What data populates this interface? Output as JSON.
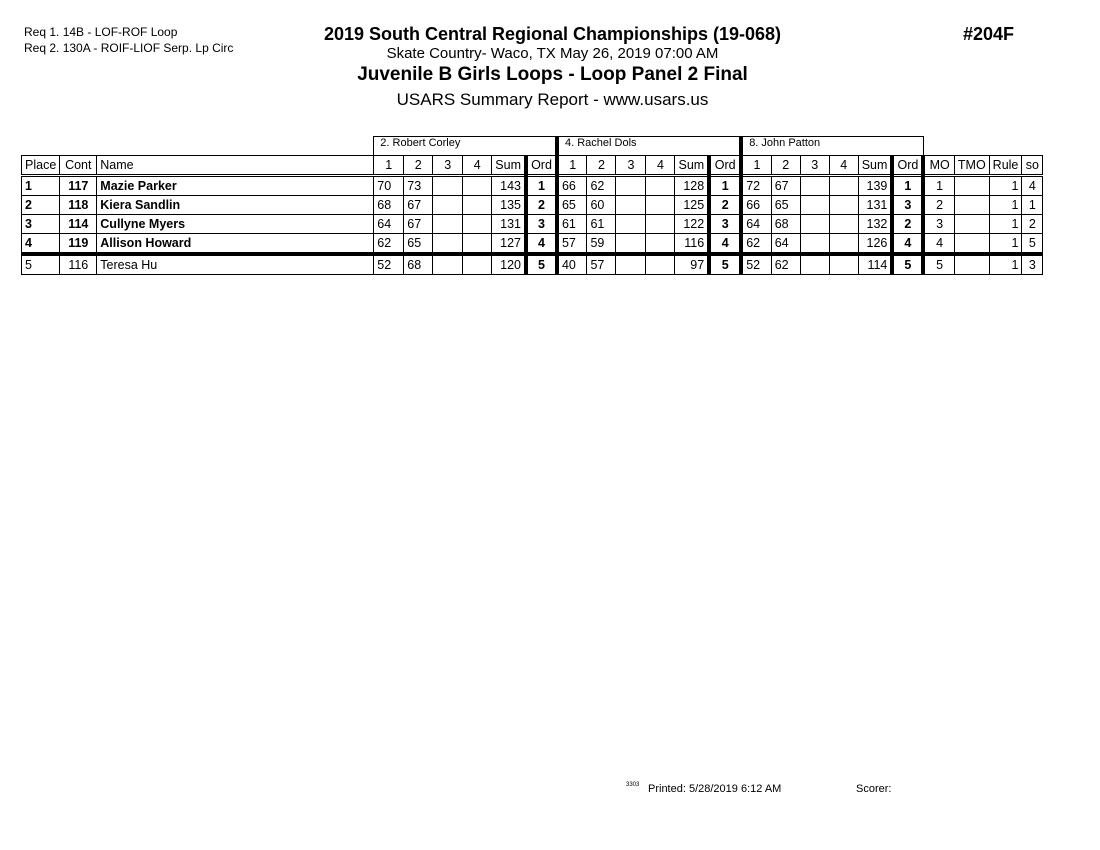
{
  "requirements": [
    "Req  1.  14B - LOF-ROF Loop",
    "Req  2.  130A - ROIF-LIOF Serp. Lp Circ"
  ],
  "event_title": "2019 South Central Regional Championships (19-068)",
  "event_number": "#204F",
  "location_date": "Skate Country- Waco, TX  May 26, 2019  07:00 AM",
  "competition": "Juvenile B Girls Loops  - Loop Panel 2 Final",
  "report": "USARS Summary Report - www.usars.us",
  "judges": [
    "2.  Robert Corley",
    "4.  Rachel Dols",
    "8.  John Patton"
  ],
  "headers": {
    "place": "Place",
    "cont": "Cont",
    "name": "Name",
    "judge_cols": [
      "1",
      "2",
      "3",
      "4",
      "Sum",
      "Ord"
    ],
    "mo": "MO",
    "tmo": "TMO",
    "rule": "Rule",
    "so": "so"
  },
  "rows": [
    {
      "place": "1",
      "cont": "117",
      "name": "Mazie Parker",
      "bold": true,
      "judges": [
        [
          "70",
          "73",
          "",
          "",
          "143",
          "1"
        ],
        [
          "66",
          "62",
          "",
          "",
          "128",
          "1"
        ],
        [
          "72",
          "67",
          "",
          "",
          "139",
          "1"
        ]
      ],
      "mo": "1",
      "tmo": "",
      "rule": "1",
      "so": "4"
    },
    {
      "place": "2",
      "cont": "118",
      "name": "Kiera Sandlin",
      "bold": true,
      "judges": [
        [
          "68",
          "67",
          "",
          "",
          "135",
          "2"
        ],
        [
          "65",
          "60",
          "",
          "",
          "125",
          "2"
        ],
        [
          "66",
          "65",
          "",
          "",
          "131",
          "3"
        ]
      ],
      "mo": "2",
      "tmo": "",
      "rule": "1",
      "so": "1"
    },
    {
      "place": "3",
      "cont": "114",
      "name": "Cullyne Myers",
      "bold": true,
      "judges": [
        [
          "64",
          "67",
          "",
          "",
          "131",
          "3"
        ],
        [
          "61",
          "61",
          "",
          "",
          "122",
          "3"
        ],
        [
          "64",
          "68",
          "",
          "",
          "132",
          "2"
        ]
      ],
      "mo": "3",
      "tmo": "",
      "rule": "1",
      "so": "2"
    },
    {
      "place": "4",
      "cont": "119",
      "name": "Allison Howard",
      "bold": true,
      "judges": [
        [
          "62",
          "65",
          "",
          "",
          "127",
          "4"
        ],
        [
          "57",
          "59",
          "",
          "",
          "116",
          "4"
        ],
        [
          "62",
          "64",
          "",
          "",
          "126",
          "4"
        ]
      ],
      "mo": "4",
      "tmo": "",
      "rule": "1",
      "so": "5"
    },
    {
      "place": "5",
      "cont": "116",
      "name": "Teresa Hu",
      "bold": false,
      "judges": [
        [
          "52",
          "68",
          "",
          "",
          "120",
          "5"
        ],
        [
          "40",
          "57",
          "",
          "",
          "97",
          "5"
        ],
        [
          "52",
          "62",
          "",
          "",
          "114",
          "5"
        ]
      ],
      "mo": "5",
      "tmo": "",
      "rule": "1",
      "so": "3"
    }
  ],
  "footer": {
    "code": "3303",
    "printed": "Printed:  5/28/2019  6:12 AM",
    "scorer": "Scorer:"
  }
}
